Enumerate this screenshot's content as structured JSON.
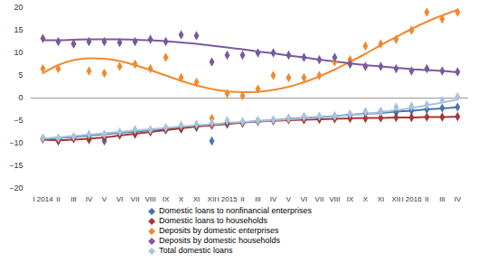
{
  "chart_data": {
    "type": "scatter",
    "marker": "diamond",
    "grid": false,
    "legend": "bottom",
    "categories": [
      "I 2014",
      "II",
      "III",
      "IV",
      "V",
      "VI",
      "VII",
      "VIII",
      "IX",
      "X",
      "XI",
      "XII",
      "I 2015",
      "II",
      "III",
      "IV",
      "V",
      "VI",
      "VII",
      "VIII",
      "IX",
      "X",
      "XI",
      "XII",
      "I 2016",
      "II",
      "III",
      "IV"
    ],
    "ylim": [
      -20,
      20
    ],
    "yticks": [
      -20,
      -15,
      -10,
      -5,
      0,
      5,
      10,
      15,
      20
    ],
    "series": [
      {
        "name": "Domestic loans to nonfinancial enterprises",
        "color": "#4a74b0",
        "values": [
          -9.0,
          -9.2,
          -8.8,
          -8.5,
          -9.5,
          -7.8,
          -7.5,
          -7.2,
          -7.0,
          -6.8,
          -6.5,
          -9.5,
          -5.8,
          -5.5,
          -5.0,
          -5.0,
          -4.5,
          -4.2,
          -4.5,
          -4.0,
          -3.8,
          -3.2,
          -3.0,
          -3.2,
          -2.8,
          -2.5,
          -2.2,
          -2.0
        ],
        "trend": [
          -9.0,
          -8.8,
          -8.6,
          -8.3,
          -8.0,
          -7.7,
          -7.4,
          -7.1,
          -6.8,
          -6.5,
          -6.2,
          -6.0,
          -5.7,
          -5.4,
          -5.1,
          -4.9,
          -4.6,
          -4.4,
          -4.2,
          -4.0,
          -3.7,
          -3.5,
          -3.3,
          -3.0,
          -2.8,
          -2.5,
          -2.3,
          -2.0
        ]
      },
      {
        "name": "Domestic loans to households",
        "color": "#a33a36",
        "values": [
          -9.0,
          -9.5,
          -9.0,
          -9.2,
          -8.8,
          -8.2,
          -8.0,
          -7.5,
          -7.0,
          -6.8,
          -6.2,
          -6.0,
          -5.5,
          -5.5,
          -5.2,
          -5.0,
          -4.8,
          -4.8,
          -4.7,
          -4.6,
          -4.5,
          -4.5,
          -4.4,
          -4.3,
          -4.3,
          -4.2,
          -4.2,
          -4.1
        ],
        "trend": [
          -9.2,
          -9.3,
          -9.2,
          -9.0,
          -8.7,
          -8.3,
          -7.9,
          -7.5,
          -7.1,
          -6.7,
          -6.3,
          -6.0,
          -5.7,
          -5.4,
          -5.2,
          -5.0,
          -4.9,
          -4.8,
          -4.7,
          -4.6,
          -4.5,
          -4.4,
          -4.4,
          -4.3,
          -4.3,
          -4.2,
          -4.2,
          -4.1
        ]
      },
      {
        "name": "Deposits by domestic enterprises",
        "color": "#f08a30",
        "values": [
          6.5,
          6.5,
          12.0,
          6.0,
          5.5,
          7.0,
          7.5,
          6.5,
          9.0,
          4.5,
          3.5,
          -4.5,
          1.0,
          0.5,
          2.0,
          5.0,
          4.5,
          4.5,
          5.0,
          8.0,
          8.5,
          11.5,
          12.0,
          13.0,
          15.0,
          19.0,
          17.5,
          19.0
        ],
        "trend": [
          5.5,
          7.3,
          8.4,
          8.8,
          8.7,
          8.2,
          7.3,
          6.2,
          5.0,
          3.8,
          2.8,
          2.0,
          1.5,
          1.3,
          1.4,
          1.8,
          2.5,
          3.5,
          4.8,
          6.3,
          8.0,
          9.8,
          11.7,
          13.5,
          15.3,
          16.9,
          18.3,
          19.5
        ]
      },
      {
        "name": "Deposits by domestic households",
        "color": "#7a5a9e",
        "values": [
          13.2,
          12.5,
          12.0,
          12.5,
          12.5,
          12.3,
          12.5,
          13.0,
          12.5,
          14.0,
          13.8,
          8.0,
          9.5,
          9.5,
          10.0,
          10.0,
          9.5,
          9.0,
          8.5,
          9.0,
          7.5,
          7.0,
          7.0,
          6.5,
          6.0,
          6.5,
          6.0,
          5.8
        ],
        "trend": [
          12.8,
          12.8,
          12.9,
          13.0,
          13.0,
          13.0,
          12.9,
          12.8,
          12.6,
          12.3,
          12.0,
          11.6,
          11.2,
          10.8,
          10.3,
          9.9,
          9.4,
          9.0,
          8.5,
          8.1,
          7.7,
          7.3,
          7.0,
          6.7,
          6.4,
          6.2,
          6.0,
          5.7
        ]
      },
      {
        "name": "Total domestic loans",
        "color": "#a8c4de",
        "values": [
          -8.8,
          -8.8,
          -8.5,
          -8.0,
          -8.0,
          -7.5,
          -7.0,
          -7.0,
          -6.5,
          -6.0,
          -5.8,
          -5.5,
          -5.0,
          -5.2,
          -5.0,
          -4.8,
          -4.5,
          -4.2,
          -4.0,
          -4.0,
          -3.5,
          -3.0,
          -3.0,
          -2.0,
          -1.8,
          -1.5,
          -0.5,
          0.3
        ],
        "trend": [
          -9.0,
          -8.7,
          -8.4,
          -8.1,
          -7.8,
          -7.5,
          -7.2,
          -6.9,
          -6.6,
          -6.3,
          -6.0,
          -5.8,
          -5.5,
          -5.3,
          -5.1,
          -4.9,
          -4.7,
          -4.5,
          -4.3,
          -4.1,
          -3.8,
          -3.5,
          -3.1,
          -2.7,
          -2.2,
          -1.6,
          -1.0,
          -0.3
        ]
      }
    ]
  }
}
